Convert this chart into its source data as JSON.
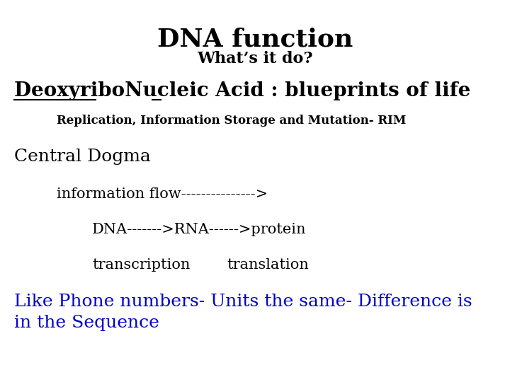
{
  "background_color": "#ffffff",
  "title": "DNA function",
  "subtitle": "What’s it do?",
  "title_fontsize": 26,
  "subtitle_fontsize": 16,
  "line1_fontsize": 20,
  "line2_text": "Replication, Information Storage and Mutation- RIM",
  "line2_fontsize": 12,
  "line3_text": "Central Dogma",
  "line3_fontsize": 18,
  "line4_text": "information flow--------------->",
  "line4_fontsize": 15,
  "line5_text": "DNA------->RNA------>protein",
  "line5_fontsize": 15,
  "line6a_text": "transcription",
  "line6b_text": "translation",
  "line6_fontsize": 15,
  "line7_text": "Like Phone numbers- Units the same- Difference is\nin the Sequence",
  "line7_fontsize": 18,
  "line7_color": "#0000cc",
  "text_color": "#000000"
}
